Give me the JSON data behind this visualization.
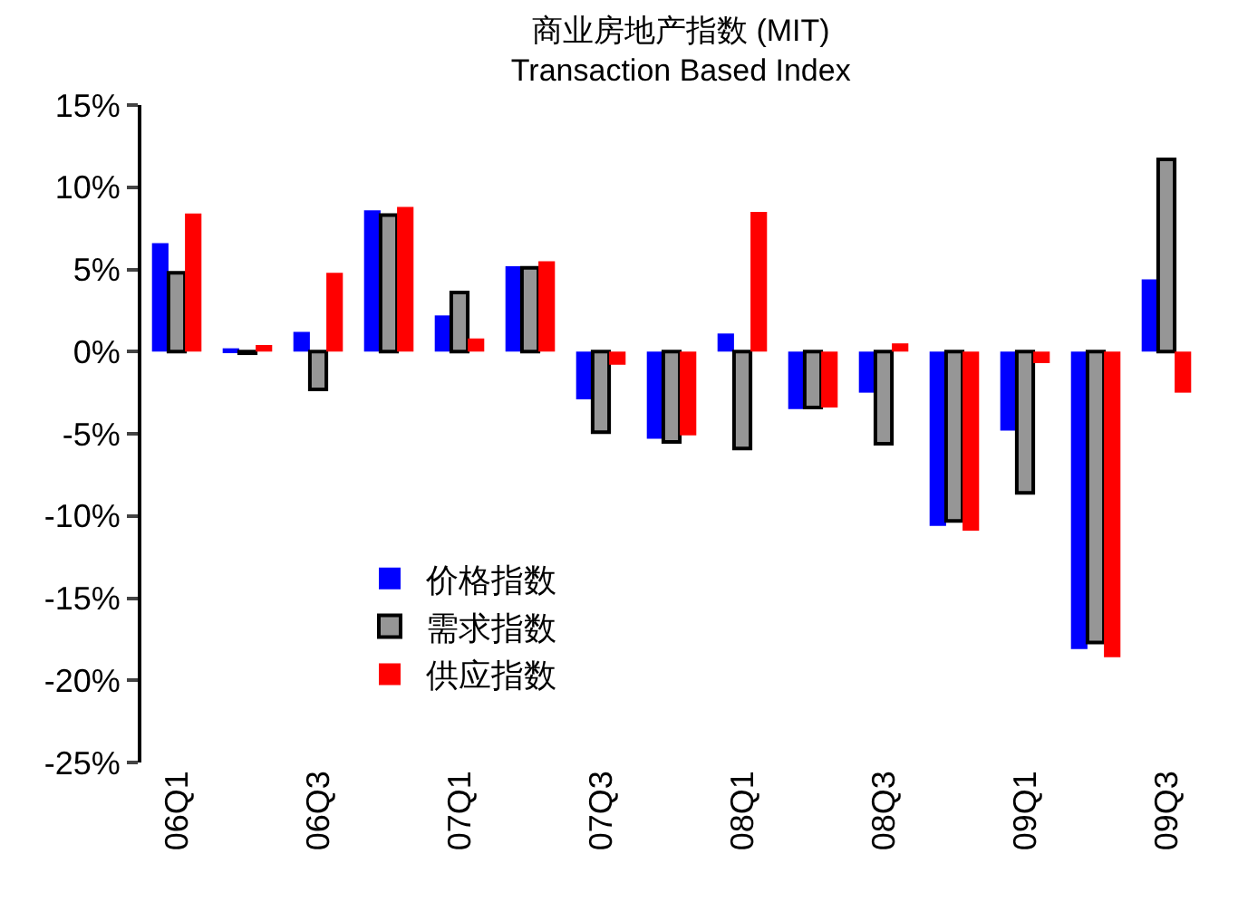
{
  "chart_data": {
    "type": "bar",
    "title": "商业房地产指数 (MIT)",
    "subtitle": "Transaction Based Index",
    "categories": [
      "06Q1",
      null,
      "06Q3",
      null,
      "07Q1",
      null,
      "07Q3",
      null,
      "08Q1",
      null,
      "08Q3",
      null,
      "09Q1",
      null,
      "09Q3"
    ],
    "series": [
      {
        "name": "价格指数",
        "color": "#0000ff",
        "values": [
          6.6,
          0.2,
          1.2,
          8.6,
          2.2,
          5.2,
          -2.9,
          -5.3,
          1.1,
          -3.5,
          -2.5,
          -10.6,
          -4.8,
          -18.1,
          4.4
        ]
      },
      {
        "name": "需求指数",
        "color": "#969696",
        "values": [
          4.8,
          -0.1,
          -2.3,
          8.3,
          3.6,
          5.1,
          -4.9,
          -5.5,
          -5.9,
          -3.4,
          -5.6,
          -10.3,
          -8.6,
          -17.7,
          11.7
        ]
      },
      {
        "name": "供应指数",
        "color": "#ff0000",
        "values": [
          8.4,
          0.4,
          4.8,
          8.8,
          0.8,
          5.5,
          -0.8,
          -5.1,
          8.5,
          -3.4,
          0.5,
          -10.9,
          -0.7,
          -18.6,
          -2.5
        ]
      }
    ],
    "ylim": [
      -25,
      15
    ],
    "yticks": [
      {
        "value": -25,
        "label": "-25%"
      },
      {
        "value": -20,
        "label": "-20%"
      },
      {
        "value": -15,
        "label": "-15%"
      },
      {
        "value": -10,
        "label": "-10%"
      },
      {
        "value": -5,
        "label": "-5%"
      },
      {
        "value": 0,
        "label": "0%"
      },
      {
        "value": 5,
        "label": "5%"
      },
      {
        "value": 10,
        "label": "10%"
      },
      {
        "value": 15,
        "label": "15%"
      }
    ],
    "grid": false,
    "legend": "left"
  }
}
